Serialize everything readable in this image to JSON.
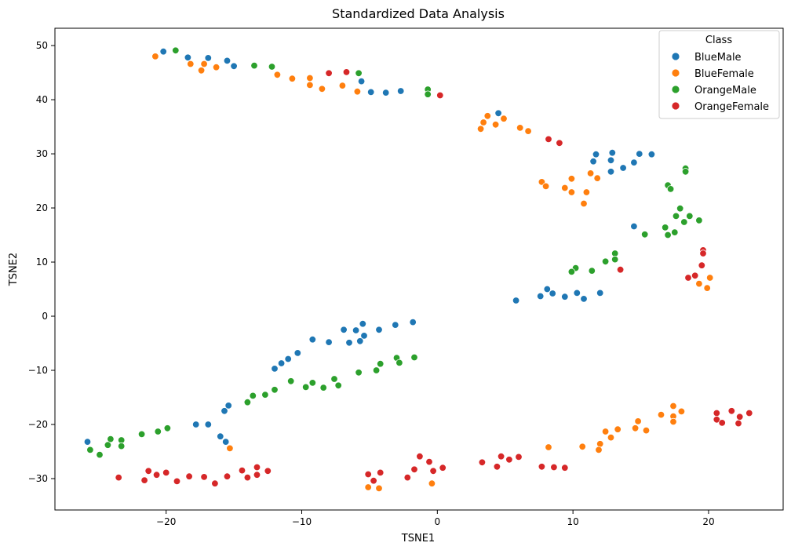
{
  "chart_data": {
    "type": "scatter",
    "title": "Standardized Data Analysis",
    "xlabel": "TSNE1",
    "ylabel": "TSNE2",
    "xlim": [
      -28.2,
      25.5
    ],
    "ylim": [
      -35.8,
      53.2
    ],
    "xticks": [
      -20,
      -10,
      0,
      10,
      20
    ],
    "yticks": [
      -30,
      -20,
      -10,
      0,
      10,
      20,
      30,
      40,
      50
    ],
    "xtick_labels": [
      "−20",
      "−10",
      "0",
      "10",
      "20"
    ],
    "ytick_labels": [
      "−30",
      "−20",
      "−10",
      "0",
      "10",
      "20",
      "30",
      "40",
      "50"
    ],
    "grid": false,
    "legend": {
      "title": "Class",
      "position": "top-right"
    },
    "series": [
      {
        "name": "BlueMale",
        "color": "#1f77b4",
        "points": [
          [
            -20.2,
            48.9
          ],
          [
            -18.4,
            47.8
          ],
          [
            -16.9,
            47.7
          ],
          [
            -15.5,
            47.2
          ],
          [
            -15.0,
            46.2
          ],
          [
            -5.6,
            43.4
          ],
          [
            -4.9,
            41.4
          ],
          [
            -3.8,
            41.3
          ],
          [
            -2.7,
            41.6
          ],
          [
            4.5,
            37.5
          ],
          [
            11.7,
            29.9
          ],
          [
            12.9,
            30.2
          ],
          [
            14.9,
            30.0
          ],
          [
            15.8,
            29.9
          ],
          [
            11.5,
            28.6
          ],
          [
            12.8,
            28.8
          ],
          [
            14.5,
            28.4
          ],
          [
            13.7,
            27.4
          ],
          [
            12.8,
            26.7
          ],
          [
            14.5,
            16.6
          ],
          [
            5.8,
            2.9
          ],
          [
            7.6,
            3.7
          ],
          [
            8.1,
            5.0
          ],
          [
            8.5,
            4.2
          ],
          [
            9.4,
            3.6
          ],
          [
            10.3,
            4.3
          ],
          [
            10.8,
            3.2
          ],
          [
            12.0,
            4.3
          ],
          [
            -1.8,
            -1.1
          ],
          [
            -3.1,
            -1.6
          ],
          [
            -4.3,
            -2.5
          ],
          [
            -5.5,
            -1.4
          ],
          [
            -6.0,
            -2.6
          ],
          [
            -6.9,
            -2.5
          ],
          [
            -5.4,
            -3.6
          ],
          [
            -5.7,
            -4.6
          ],
          [
            -6.5,
            -4.9
          ],
          [
            -8.0,
            -4.8
          ],
          [
            -9.2,
            -4.3
          ],
          [
            -10.3,
            -6.8
          ],
          [
            -11.0,
            -7.9
          ],
          [
            -11.5,
            -8.7
          ],
          [
            -12.0,
            -9.7
          ],
          [
            -15.4,
            -16.5
          ],
          [
            -15.7,
            -17.5
          ],
          [
            -16.9,
            -20.0
          ],
          [
            -17.8,
            -20.0
          ],
          [
            -16.0,
            -22.2
          ],
          [
            -15.6,
            -23.2
          ],
          [
            -25.8,
            -23.2
          ]
        ]
      },
      {
        "name": "BlueFemale",
        "color": "#ff7f0e",
        "points": [
          [
            -20.8,
            48.0
          ],
          [
            -18.2,
            46.6
          ],
          [
            -17.2,
            46.6
          ],
          [
            -17.4,
            45.4
          ],
          [
            -16.3,
            46.0
          ],
          [
            -11.8,
            44.6
          ],
          [
            -10.7,
            43.9
          ],
          [
            -9.4,
            44.0
          ],
          [
            -9.4,
            42.7
          ],
          [
            -8.5,
            42.0
          ],
          [
            -7.0,
            42.6
          ],
          [
            -5.9,
            41.5
          ],
          [
            3.2,
            34.6
          ],
          [
            3.4,
            35.8
          ],
          [
            3.7,
            37.0
          ],
          [
            4.3,
            35.4
          ],
          [
            4.9,
            36.5
          ],
          [
            6.1,
            34.8
          ],
          [
            6.7,
            34.2
          ],
          [
            7.7,
            24.8
          ],
          [
            8.0,
            24.0
          ],
          [
            9.4,
            23.7
          ],
          [
            9.9,
            25.4
          ],
          [
            9.9,
            22.9
          ],
          [
            11.0,
            22.9
          ],
          [
            11.3,
            26.4
          ],
          [
            11.8,
            25.5
          ],
          [
            10.8,
            20.8
          ],
          [
            20.1,
            7.1
          ],
          [
            19.3,
            6.0
          ],
          [
            19.9,
            5.2
          ],
          [
            17.4,
            -16.6
          ],
          [
            18.0,
            -17.6
          ],
          [
            16.5,
            -18.2
          ],
          [
            17.4,
            -18.5
          ],
          [
            17.4,
            -19.5
          ],
          [
            14.8,
            -19.4
          ],
          [
            14.6,
            -20.7
          ],
          [
            15.4,
            -21.1
          ],
          [
            13.3,
            -20.9
          ],
          [
            12.4,
            -21.3
          ],
          [
            12.8,
            -22.4
          ],
          [
            12.0,
            -23.6
          ],
          [
            11.9,
            -24.7
          ],
          [
            10.7,
            -24.1
          ],
          [
            8.2,
            -24.2
          ],
          [
            -15.3,
            -24.4
          ],
          [
            -0.4,
            -30.9
          ],
          [
            -5.1,
            -31.6
          ],
          [
            -4.3,
            -31.8
          ]
        ]
      },
      {
        "name": "OrangeMale",
        "color": "#2ca02c",
        "points": [
          [
            -19.3,
            49.1
          ],
          [
            -13.5,
            46.3
          ],
          [
            -12.2,
            46.1
          ],
          [
            -5.8,
            44.9
          ],
          [
            -0.7,
            41.9
          ],
          [
            -0.7,
            41.0
          ],
          [
            18.3,
            27.3
          ],
          [
            18.3,
            26.7
          ],
          [
            17.0,
            24.2
          ],
          [
            17.2,
            23.5
          ],
          [
            17.9,
            19.9
          ],
          [
            17.6,
            18.5
          ],
          [
            18.6,
            18.5
          ],
          [
            19.3,
            17.7
          ],
          [
            18.2,
            17.4
          ],
          [
            16.8,
            16.4
          ],
          [
            17.5,
            15.5
          ],
          [
            17.0,
            15.0
          ],
          [
            15.3,
            15.1
          ],
          [
            13.1,
            11.6
          ],
          [
            13.1,
            10.5
          ],
          [
            12.4,
            10.1
          ],
          [
            10.2,
            8.9
          ],
          [
            9.9,
            8.2
          ],
          [
            11.4,
            8.4
          ],
          [
            -1.7,
            -7.6
          ],
          [
            -3.0,
            -7.7
          ],
          [
            -2.8,
            -8.6
          ],
          [
            -4.2,
            -8.8
          ],
          [
            -4.5,
            -10.0
          ],
          [
            -5.8,
            -10.4
          ],
          [
            -7.6,
            -11.6
          ],
          [
            -7.3,
            -12.8
          ],
          [
            -8.4,
            -13.2
          ],
          [
            -9.2,
            -12.3
          ],
          [
            -9.7,
            -13.1
          ],
          [
            -10.8,
            -12.0
          ],
          [
            -12.0,
            -13.6
          ],
          [
            -12.7,
            -14.5
          ],
          [
            -13.6,
            -14.7
          ],
          [
            -14.0,
            -15.9
          ],
          [
            -19.9,
            -20.7
          ],
          [
            -20.6,
            -21.3
          ],
          [
            -21.8,
            -21.8
          ],
          [
            -23.3,
            -22.9
          ],
          [
            -24.1,
            -22.7
          ],
          [
            -24.3,
            -23.8
          ],
          [
            -23.3,
            -24.0
          ],
          [
            -25.6,
            -24.7
          ],
          [
            -24.9,
            -25.6
          ]
        ]
      },
      {
        "name": "OrangeFemale",
        "color": "#d62728",
        "points": [
          [
            -8.0,
            44.9
          ],
          [
            -6.7,
            45.1
          ],
          [
            0.2,
            40.8
          ],
          [
            8.2,
            32.7
          ],
          [
            9.0,
            32.0
          ],
          [
            13.5,
            8.6
          ],
          [
            19.6,
            12.2
          ],
          [
            19.6,
            11.6
          ],
          [
            19.5,
            9.4
          ],
          [
            19.0,
            7.5
          ],
          [
            18.5,
            7.1
          ],
          [
            20.6,
            -17.9
          ],
          [
            21.7,
            -17.5
          ],
          [
            23.0,
            -17.9
          ],
          [
            22.3,
            -18.6
          ],
          [
            20.6,
            -19.1
          ],
          [
            21.0,
            -19.7
          ],
          [
            22.2,
            -19.8
          ],
          [
            3.3,
            -27.0
          ],
          [
            4.7,
            -25.9
          ],
          [
            5.3,
            -26.5
          ],
          [
            6.0,
            -26.0
          ],
          [
            7.7,
            -27.8
          ],
          [
            8.6,
            -27.9
          ],
          [
            9.4,
            -28.0
          ],
          [
            4.4,
            -27.8
          ],
          [
            -1.3,
            -25.9
          ],
          [
            -0.6,
            -26.9
          ],
          [
            -1.7,
            -28.3
          ],
          [
            -2.2,
            -29.8
          ],
          [
            0.4,
            -28.0
          ],
          [
            -0.3,
            -28.6
          ],
          [
            -4.2,
            -28.9
          ],
          [
            -5.1,
            -29.2
          ],
          [
            -4.7,
            -30.4
          ],
          [
            -12.5,
            -28.6
          ],
          [
            -13.3,
            -27.9
          ],
          [
            -13.3,
            -29.3
          ],
          [
            -14.0,
            -29.8
          ],
          [
            -14.4,
            -28.5
          ],
          [
            -15.5,
            -29.6
          ],
          [
            -16.4,
            -30.9
          ],
          [
            -17.2,
            -29.7
          ],
          [
            -18.3,
            -29.6
          ],
          [
            -19.2,
            -30.5
          ],
          [
            -20.0,
            -28.9
          ],
          [
            -20.7,
            -29.3
          ],
          [
            -21.3,
            -28.6
          ],
          [
            -21.6,
            -30.3
          ],
          [
            -23.5,
            -29.8
          ]
        ]
      }
    ]
  }
}
